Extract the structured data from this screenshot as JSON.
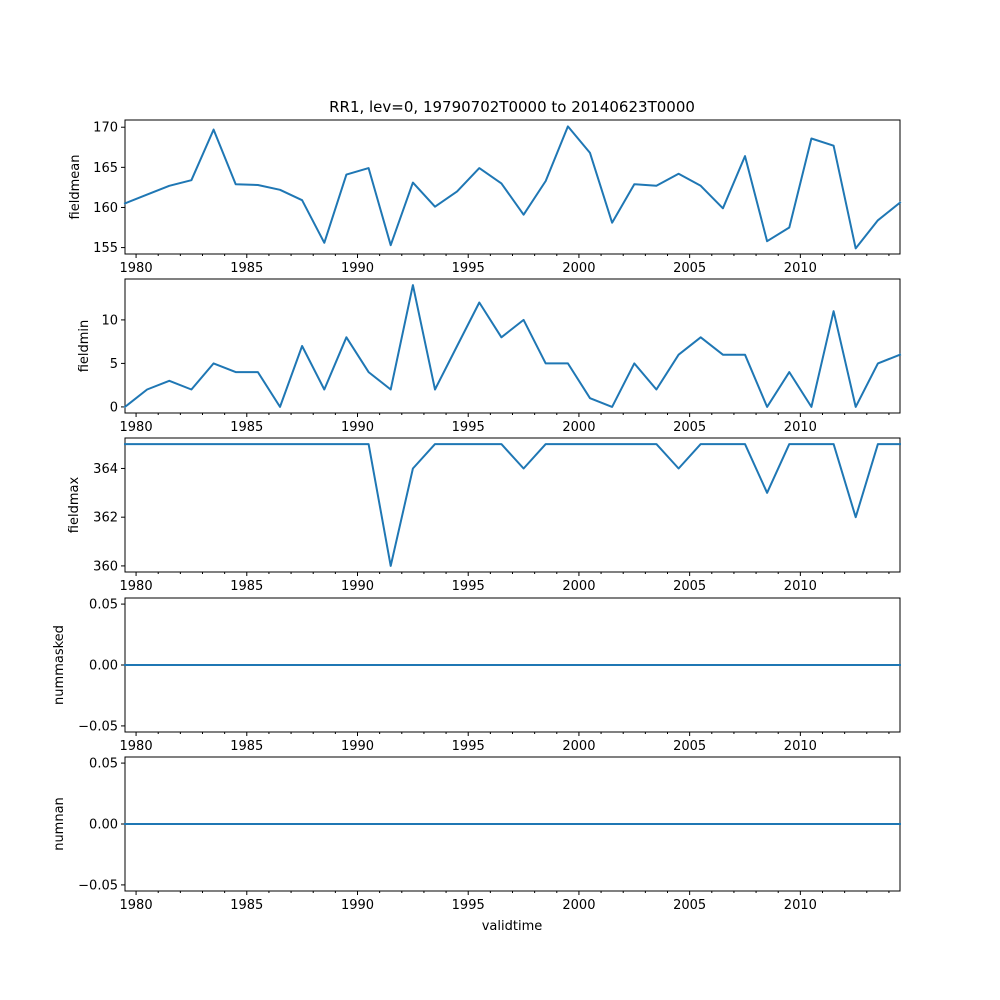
{
  "chart_data": {
    "type": "line",
    "title": "RR1, lev=0, 19790702T0000 to 20140623T0000",
    "xlabel": "validtime",
    "line_color": "#1f77b4",
    "x": [
      1979.5,
      1980.5,
      1981.5,
      1982.5,
      1983.5,
      1984.5,
      1985.5,
      1986.5,
      1987.5,
      1988.5,
      1989.5,
      1990.5,
      1991.5,
      1992.5,
      1993.5,
      1994.5,
      1995.5,
      1996.5,
      1997.5,
      1998.5,
      1999.5,
      2000.5,
      2001.5,
      2002.5,
      2003.5,
      2004.5,
      2005.5,
      2006.5,
      2007.5,
      2008.5,
      2009.5,
      2010.5,
      2011.5,
      2012.5,
      2013.5,
      2014.5
    ],
    "xlim": [
      1979.5,
      2014.5
    ],
    "xticks": [
      1980,
      1985,
      1990,
      1995,
      2000,
      2005,
      2010
    ],
    "xtick_labels": [
      "1980",
      "1985",
      "1990",
      "1995",
      "2000",
      "2005",
      "2010"
    ],
    "panels": [
      {
        "name": "fieldmean",
        "ylabel": "fieldmean",
        "ylim": [
          154.2,
          170.9
        ],
        "yticks": [
          155,
          160,
          165,
          170
        ],
        "ytick_labels": [
          "155",
          "160",
          "165",
          "170"
        ],
        "values": [
          160.5,
          161.6,
          162.7,
          163.4,
          169.7,
          162.9,
          162.8,
          162.2,
          160.9,
          155.6,
          164.1,
          164.9,
          155.3,
          163.1,
          160.1,
          162.0,
          164.9,
          163.0,
          159.1,
          163.3,
          170.1,
          166.8,
          158.1,
          162.9,
          162.7,
          164.2,
          162.7,
          159.9,
          166.4,
          155.8,
          157.5,
          168.6,
          167.7,
          154.9,
          158.4,
          160.6
        ]
      },
      {
        "name": "fieldmin",
        "ylabel": "fieldmin",
        "ylim": [
          -0.7,
          14.7
        ],
        "yticks": [
          0,
          5,
          10
        ],
        "ytick_labels": [
          "0",
          "5",
          "10"
        ],
        "values": [
          0,
          2,
          3,
          2,
          5,
          4,
          4,
          0,
          7,
          2,
          8,
          4,
          2,
          14,
          2,
          7,
          12,
          8,
          10,
          5,
          5,
          1,
          0,
          5,
          2,
          6,
          8,
          6,
          6,
          0,
          4,
          0,
          11,
          0,
          5,
          6
        ]
      },
      {
        "name": "fieldmax",
        "ylabel": "fieldmax",
        "ylim": [
          359.75,
          365.25
        ],
        "yticks": [
          360,
          362,
          364
        ],
        "ytick_labels": [
          "360",
          "362",
          "364"
        ],
        "values": [
          365,
          365,
          365,
          365,
          365,
          365,
          365,
          365,
          365,
          365,
          365,
          365,
          360,
          364,
          365,
          365,
          365,
          365,
          364,
          365,
          365,
          365,
          365,
          365,
          365,
          364,
          365,
          365,
          365,
          363,
          365,
          365,
          365,
          362,
          365,
          365
        ]
      },
      {
        "name": "nummasked",
        "ylabel": "nummasked",
        "ylim": [
          -0.055,
          0.055
        ],
        "yticks": [
          -0.05,
          0.0,
          0.05
        ],
        "ytick_labels": [
          "−0.05",
          "0.00",
          "0.05"
        ],
        "values": [
          0,
          0,
          0,
          0,
          0,
          0,
          0,
          0,
          0,
          0,
          0,
          0,
          0,
          0,
          0,
          0,
          0,
          0,
          0,
          0,
          0,
          0,
          0,
          0,
          0,
          0,
          0,
          0,
          0,
          0,
          0,
          0,
          0,
          0,
          0,
          0
        ]
      },
      {
        "name": "numnan",
        "ylabel": "numnan",
        "ylim": [
          -0.055,
          0.055
        ],
        "yticks": [
          -0.05,
          0.0,
          0.05
        ],
        "ytick_labels": [
          "−0.05",
          "0.00",
          "0.05"
        ],
        "values": [
          0,
          0,
          0,
          0,
          0,
          0,
          0,
          0,
          0,
          0,
          0,
          0,
          0,
          0,
          0,
          0,
          0,
          0,
          0,
          0,
          0,
          0,
          0,
          0,
          0,
          0,
          0,
          0,
          0,
          0,
          0,
          0,
          0,
          0,
          0,
          0
        ]
      }
    ]
  }
}
